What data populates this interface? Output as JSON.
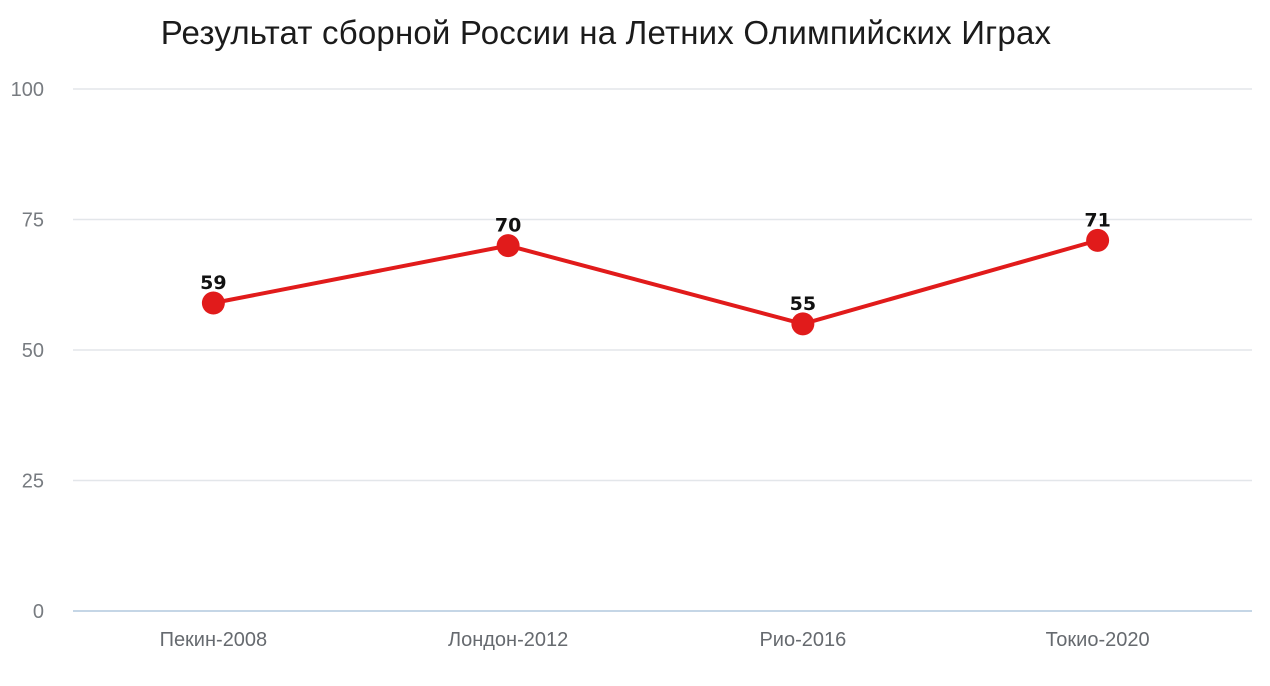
{
  "chart_data": {
    "type": "line",
    "title": "Результат сборной России на Летних Олимпийских Играх",
    "categories": [
      "Пекин-2008",
      "Лондон-2012",
      "Рио-2016",
      "Токио-2020"
    ],
    "series": [
      {
        "values": [
          59,
          70,
          55,
          71
        ]
      }
    ],
    "ylim": [
      0,
      100
    ],
    "yticks": [
      0,
      25,
      50,
      75,
      100
    ],
    "grid": true,
    "line_color": "#e11b1b",
    "grid_color": "#e3e6ea",
    "axis_color": "#c5d6e6"
  }
}
